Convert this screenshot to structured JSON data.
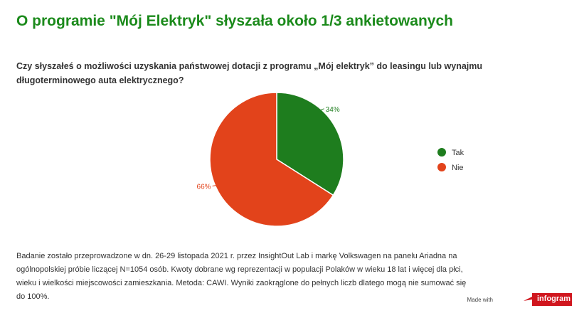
{
  "header": {
    "title": "O programie \"Mój Elektryk\" słyszała około 1/3 ankietowanych",
    "question": "Czy słyszałeś o możliwości uzyskania państwowej dotacji z programu „Mój elektryk” do leasingu lub wynajmu długoterminowego auta elektrycznego?"
  },
  "chart_data": {
    "type": "pie",
    "title": "",
    "categories": [
      "Tak",
      "Nie"
    ],
    "values": [
      34,
      66
    ],
    "labels": [
      "34%",
      "66%"
    ],
    "colors": [
      "#1e7d1e",
      "#e2431b"
    ],
    "legend_position": "right"
  },
  "footer": {
    "note": "Badanie zostało przeprowadzone w dn. 26-29 listopada 2021 r. przez InsightOut Lab i markę Volkswagen na panelu Ariadna na ogólnopolskiej próbie liczącej N=1054 osób. Kwoty dobrane wg reprezentacji w populacji Polaków w wieku 18 lat i więcej dla płci, wieku i wielkości miejscowości zamieszkania. Metoda: CAWI. Wyniki zaokrąglone do pełnych liczb dlatego mogą nie sumować się do 100%.",
    "made_with": "Made with",
    "brand": "infogram",
    "brand_color": "#d0161e"
  }
}
